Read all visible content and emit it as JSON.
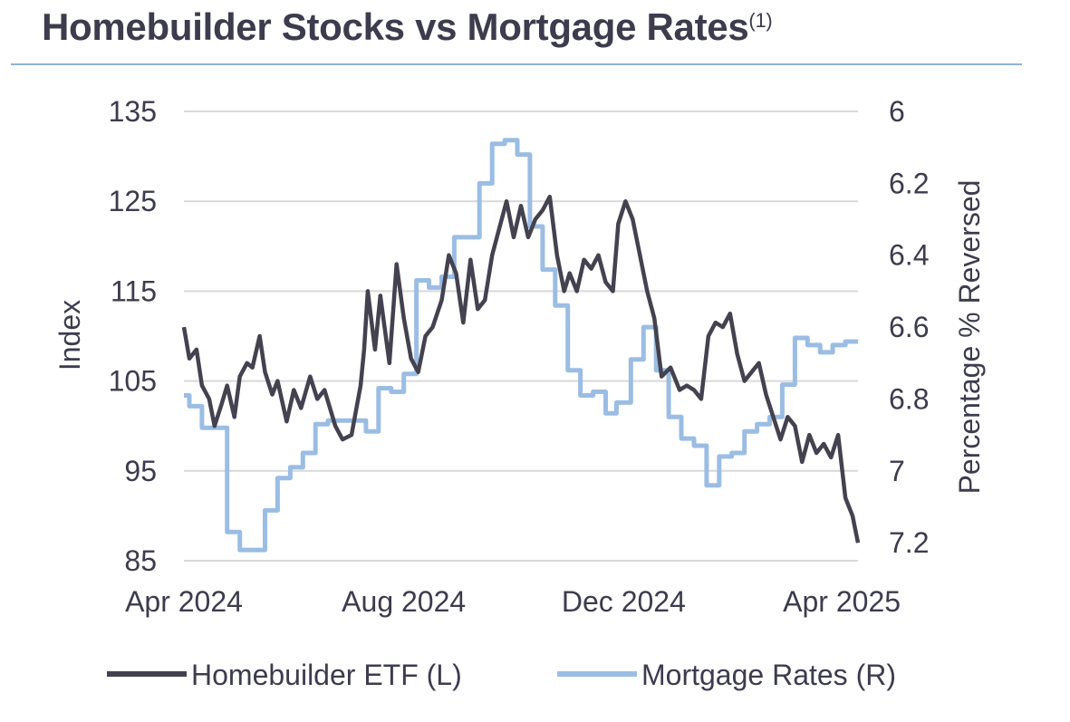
{
  "title": "Homebuilder Stocks vs Mortgage Rates",
  "title_note": "(1)",
  "colors": {
    "etf": "#44424f",
    "rates": "#9bbde3",
    "grid": "#d9d9d9",
    "rule": "#8fb3d6",
    "text": "#3d3c4d"
  },
  "chart_data": {
    "type": "line",
    "title": "Homebuilder Stocks vs Mortgage Rates",
    "x_range": [
      "2024-04-01",
      "2025-04-10"
    ],
    "x_ticks": [
      "Apr 2024",
      "Aug 2024",
      "Dec 2024",
      "Apr 2025"
    ],
    "x_tick_dates": [
      "2024-04-01",
      "2024-08-01",
      "2024-12-01",
      "2025-04-01"
    ],
    "ylabel_left": "Index",
    "ylabel_right": "Percentage % Reversed",
    "ylim_left": [
      85,
      135
    ],
    "yticks_left": [
      "135",
      "125",
      "115",
      "105",
      "95",
      "85"
    ],
    "yticks_left_values": [
      135,
      125,
      115,
      105,
      95,
      85
    ],
    "ylim_right": [
      6.0,
      7.25
    ],
    "right_axis_reversed": true,
    "yticks_right": [
      "6",
      "6.2",
      "6.4",
      "6.6",
      "6.8",
      "7",
      "7.2"
    ],
    "yticks_right_values": [
      6.0,
      6.2,
      6.4,
      6.6,
      6.8,
      7.0,
      7.2
    ],
    "grid": true,
    "legend_position": "bottom",
    "series": [
      {
        "name": "Homebuilder ETF (L)",
        "axis": "left",
        "x": [
          "2024-04-01",
          "2024-04-04",
          "2024-04-08",
          "2024-04-11",
          "2024-04-15",
          "2024-04-18",
          "2024-04-22",
          "2024-04-25",
          "2024-04-29",
          "2024-05-02",
          "2024-05-06",
          "2024-05-09",
          "2024-05-13",
          "2024-05-16",
          "2024-05-20",
          "2024-05-23",
          "2024-05-28",
          "2024-06-01",
          "2024-06-05",
          "2024-06-10",
          "2024-06-14",
          "2024-06-18",
          "2024-06-24",
          "2024-06-28",
          "2024-07-03",
          "2024-07-08",
          "2024-07-10",
          "2024-07-12",
          "2024-07-16",
          "2024-07-19",
          "2024-07-24",
          "2024-07-28",
          "2024-08-01",
          "2024-08-05",
          "2024-08-09",
          "2024-08-13",
          "2024-08-17",
          "2024-08-22",
          "2024-08-26",
          "2024-08-30",
          "2024-09-03",
          "2024-09-07",
          "2024-09-11",
          "2024-09-15",
          "2024-09-19",
          "2024-09-23",
          "2024-09-27",
          "2024-10-01",
          "2024-10-05",
          "2024-10-09",
          "2024-10-13",
          "2024-10-17",
          "2024-10-21",
          "2024-10-25",
          "2024-10-29",
          "2024-11-01",
          "2024-11-05",
          "2024-11-09",
          "2024-11-13",
          "2024-11-17",
          "2024-11-21",
          "2024-11-25",
          "2024-11-28",
          "2024-12-02",
          "2024-12-06",
          "2024-12-10",
          "2024-12-14",
          "2024-12-18",
          "2024-12-22",
          "2024-12-27",
          "2025-01-01",
          "2025-01-05",
          "2025-01-09",
          "2025-01-13",
          "2025-01-17",
          "2025-01-21",
          "2025-01-25",
          "2025-01-29",
          "2025-02-02",
          "2025-02-06",
          "2025-02-10",
          "2025-02-14",
          "2025-02-18",
          "2025-02-22",
          "2025-02-26",
          "2025-03-02",
          "2025-03-06",
          "2025-03-10",
          "2025-03-14",
          "2025-03-18",
          "2025-03-22",
          "2025-03-26",
          "2025-03-30",
          "2025-04-03",
          "2025-04-07",
          "2025-04-10"
        ],
        "values": [
          111,
          107.5,
          108.5,
          104.5,
          103,
          100,
          102.5,
          104.5,
          101,
          105.5,
          107,
          106.5,
          110,
          106,
          103.5,
          105,
          100.5,
          104,
          102,
          105.5,
          103,
          104,
          100,
          98.5,
          99,
          104.5,
          108.5,
          115,
          108.5,
          114.5,
          107,
          118,
          112,
          107.5,
          106,
          110,
          111,
          114,
          119,
          117,
          111.5,
          118.5,
          113,
          114,
          119,
          122,
          125,
          121,
          124.5,
          121,
          123,
          124,
          125.5,
          119,
          115,
          117,
          115,
          118.5,
          117.5,
          119,
          116,
          115,
          122.5,
          125,
          123,
          119,
          115,
          112,
          105.5,
          106.5,
          104,
          104.5,
          104,
          103,
          110,
          111.5,
          111,
          112.5,
          108,
          105,
          106,
          107,
          103.5,
          101,
          98.5,
          101,
          100,
          96,
          99,
          97,
          98,
          96.5,
          99,
          92,
          90,
          87
        ]
      },
      {
        "name": "Mortgage Rates (R)",
        "axis": "right",
        "x": [
          "2024-04-01",
          "2024-04-04",
          "2024-04-11",
          "2024-04-18",
          "2024-04-25",
          "2024-05-02",
          "2024-05-09",
          "2024-05-16",
          "2024-05-23",
          "2024-05-30",
          "2024-06-06",
          "2024-06-13",
          "2024-06-20",
          "2024-06-27",
          "2024-07-03",
          "2024-07-11",
          "2024-07-18",
          "2024-07-25",
          "2024-08-01",
          "2024-08-08",
          "2024-08-15",
          "2024-08-22",
          "2024-08-29",
          "2024-09-05",
          "2024-09-12",
          "2024-09-19",
          "2024-09-26",
          "2024-10-03",
          "2024-10-10",
          "2024-10-17",
          "2024-10-24",
          "2024-10-31",
          "2024-11-07",
          "2024-11-14",
          "2024-11-21",
          "2024-11-27",
          "2024-12-05",
          "2024-12-12",
          "2024-12-19",
          "2024-12-26",
          "2025-01-02",
          "2025-01-09",
          "2025-01-16",
          "2025-01-23",
          "2025-01-30",
          "2025-02-06",
          "2025-02-13",
          "2025-02-20",
          "2025-02-27",
          "2025-03-06",
          "2025-03-13",
          "2025-03-20",
          "2025-03-27",
          "2025-04-03",
          "2025-04-10"
        ],
        "values": [
          6.79,
          6.82,
          6.88,
          6.88,
          7.17,
          7.22,
          7.22,
          7.11,
          7.02,
          6.99,
          6.95,
          6.87,
          6.86,
          6.86,
          6.86,
          6.89,
          6.77,
          6.78,
          6.73,
          6.47,
          6.49,
          6.46,
          6.35,
          6.35,
          6.2,
          6.09,
          6.08,
          6.12,
          6.32,
          6.44,
          6.54,
          6.72,
          6.79,
          6.78,
          6.84,
          6.81,
          6.69,
          6.6,
          6.72,
          6.85,
          6.91,
          6.93,
          7.04,
          6.96,
          6.95,
          6.89,
          6.87,
          6.85,
          6.76,
          6.63,
          6.65,
          6.67,
          6.65,
          6.64,
          6.64
        ]
      }
    ]
  },
  "legend": [
    {
      "label": "Homebuilder ETF (L)"
    },
    {
      "label": "Mortgage Rates (R)"
    }
  ]
}
